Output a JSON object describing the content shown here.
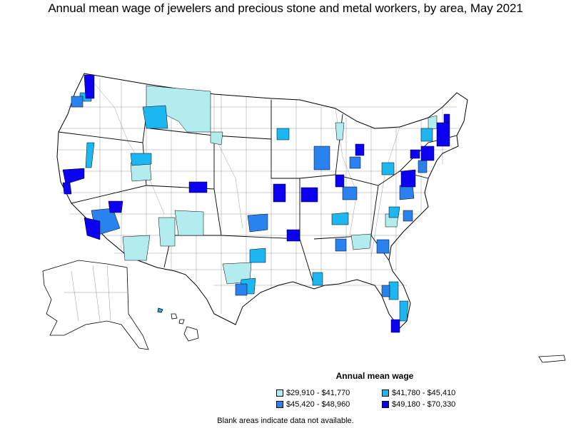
{
  "title": "Annual mean wage of jewelers and precious stone and metal workers, by area, May 2021",
  "legend": {
    "title": "Annual mean wage",
    "items": [
      {
        "label": "$29,910 - $41,770",
        "color": "#b3ecef"
      },
      {
        "label": "$41,780 - $45,410",
        "color": "#1cb7f0"
      },
      {
        "label": "$45,420 - $48,960",
        "color": "#2a82ee"
      },
      {
        "label": "$49,180 - $70,330",
        "color": "#0c00f0"
      }
    ]
  },
  "note": "Blank areas indicate data not available.",
  "colors": {
    "no_data": "#ffffff",
    "border": "#000000"
  }
}
